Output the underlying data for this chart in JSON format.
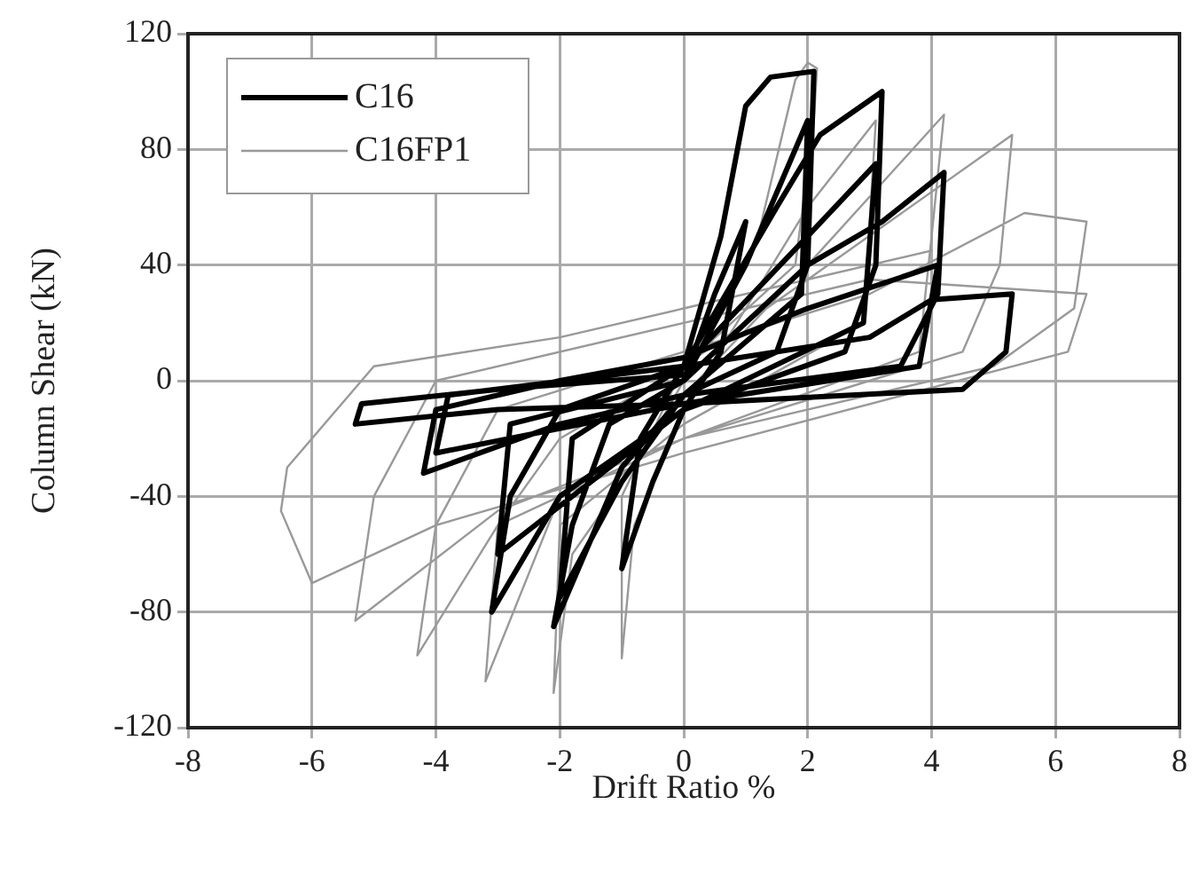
{
  "chart_data": {
    "type": "line",
    "xlabel": "Drift Ratio %",
    "ylabel": "Column Shear (kN)",
    "xlim": [
      -8,
      8
    ],
    "xticks": [
      -8,
      -6,
      -4,
      -2,
      0,
      2,
      4,
      6,
      8
    ],
    "ylim": [
      -120,
      120
    ],
    "yticks": [
      -120,
      -80,
      -40,
      0,
      40,
      80,
      120
    ],
    "grid": true,
    "legend": "top left",
    "marker": "none",
    "series": [
      {
        "name": "C16",
        "color": "#000000",
        "x": [
          0,
          0.5,
          1.0,
          0.6,
          0,
          -0.5,
          -1.0,
          -0.7,
          0,
          0.6,
          1.0,
          1.4,
          2.1,
          2.0,
          1.5,
          0,
          -1,
          -2.1,
          -1.8,
          -1.2,
          0,
          1,
          2.0,
          1.9,
          0,
          -1,
          -2.0,
          -1.8,
          0,
          1.5,
          2.2,
          3.2,
          3.1,
          2.6,
          0,
          -2,
          -3.1,
          -2.8,
          -2.0,
          0,
          2,
          3.1,
          2.9,
          0,
          -3,
          -2.8,
          0,
          2,
          3.2,
          4.2,
          4.1,
          3.5,
          0,
          -2,
          -4.2,
          -4.0,
          -2,
          0,
          2,
          4.1,
          3.8,
          0,
          -4,
          -3.8,
          0,
          3,
          4,
          5.3,
          5.2,
          4.5,
          0,
          -3,
          -5.3,
          -5.2,
          -3,
          0
        ],
        "values": [
          0,
          30,
          55,
          10,
          -10,
          -35,
          -65,
          -20,
          5,
          50,
          95,
          105,
          107,
          40,
          10,
          -5,
          -30,
          -85,
          -50,
          -15,
          0,
          40,
          90,
          30,
          -5,
          -35,
          -75,
          -20,
          5,
          60,
          85,
          100,
          40,
          10,
          -10,
          -40,
          -80,
          -40,
          -10,
          5,
          50,
          75,
          20,
          -10,
          -60,
          -15,
          0,
          40,
          55,
          72,
          30,
          5,
          -5,
          -15,
          -32,
          -10,
          0,
          8,
          25,
          40,
          5,
          -8,
          -25,
          -5,
          5,
          15,
          28,
          30,
          10,
          -3,
          -8,
          -10,
          -15,
          -8,
          -3,
          2
        ]
      },
      {
        "name": "C16FP1",
        "color": "#999999",
        "x": [
          0,
          0.8,
          -0.8,
          0,
          1.2,
          1.8,
          2.0,
          2.15,
          2.1,
          1.8,
          0,
          -1.0,
          -1.0,
          -0.8,
          0,
          1,
          2,
          3.1,
          2.9,
          0,
          -2.0,
          -2.1,
          -1.8,
          0,
          2,
          4.2,
          4.0,
          3.8,
          0,
          -2,
          -3.2,
          -3.0,
          -2,
          0,
          2,
          5.3,
          5.1,
          4.5,
          0,
          -3,
          -4.3,
          -4.0,
          -3,
          0,
          3,
          5.5,
          6.5,
          6.3,
          5,
          0,
          -3,
          -5.3,
          -5.0,
          -4,
          0,
          3,
          6.5,
          6.2,
          0,
          -4,
          -6.0,
          -6.5,
          -6.4,
          -5,
          -2,
          0,
          4
        ],
        "values": [
          0,
          30,
          -30,
          0,
          50,
          104,
          110,
          108,
          90,
          40,
          5,
          -40,
          -96,
          -50,
          -10,
          25,
          60,
          90,
          20,
          -15,
          -50,
          -108,
          -60,
          -5,
          40,
          92,
          50,
          10,
          -20,
          -40,
          -104,
          -50,
          -20,
          5,
          35,
          85,
          40,
          10,
          -20,
          -50,
          -95,
          -50,
          -10,
          10,
          30,
          58,
          55,
          25,
          5,
          -20,
          -45,
          -83,
          -40,
          0,
          20,
          35,
          30,
          10,
          -25,
          -50,
          -70,
          -45,
          -30,
          5,
          15,
          25,
          45
        ]
      }
    ]
  }
}
